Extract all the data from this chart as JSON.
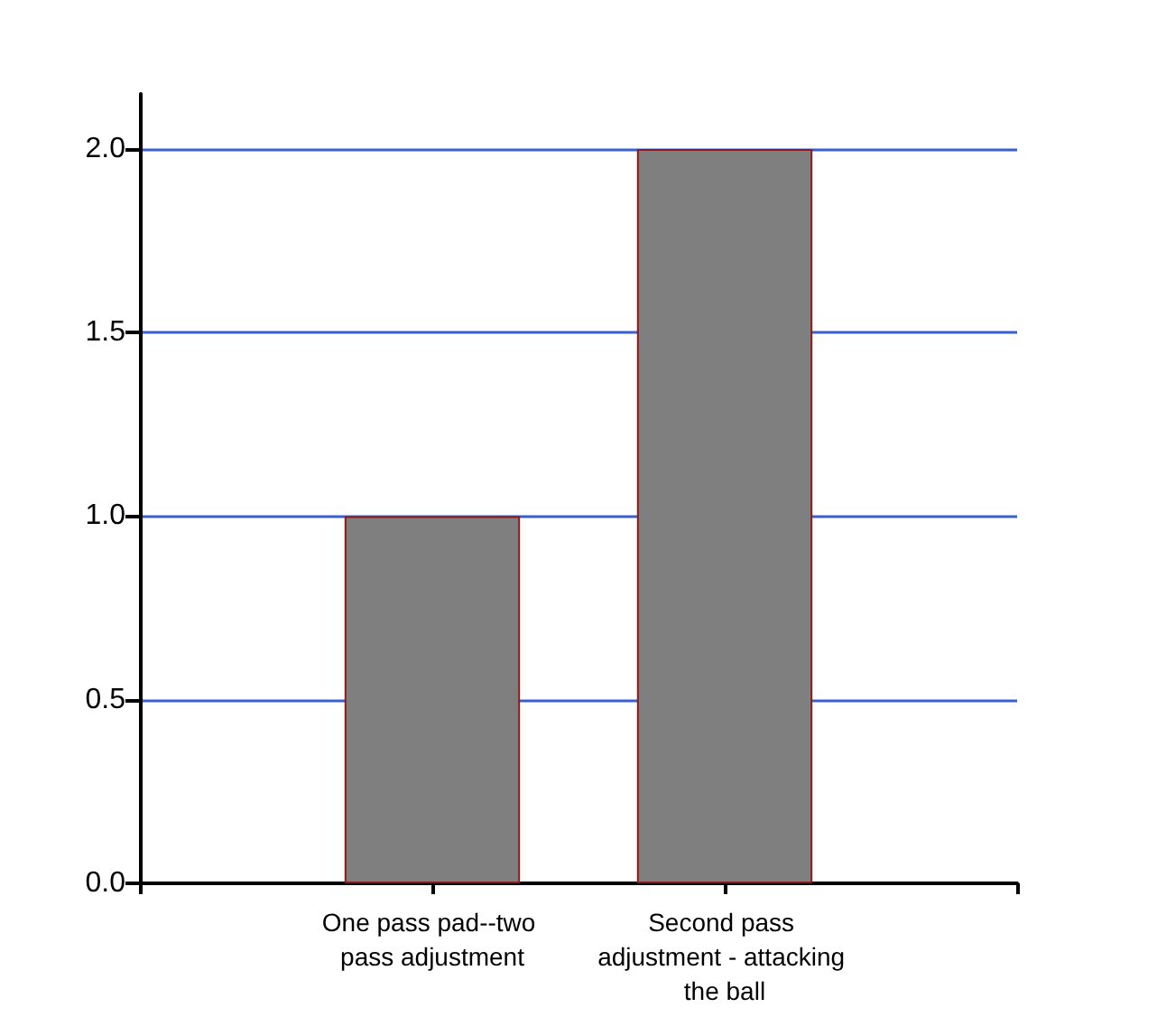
{
  "chart_data": {
    "type": "bar",
    "categories": [
      null,
      "One pass pad--two pass adjustment",
      "Second pass adjustment - attacking the ball",
      null
    ],
    "values": [
      null,
      1.0,
      2.0,
      null
    ],
    "color": "#7f7f7f",
    "ylim": [
      0,
      2.15
    ],
    "yticks": [
      {
        "value": 0,
        "label": "0.0"
      },
      {
        "value": 0.5,
        "label": "0.5"
      },
      {
        "value": 1,
        "label": "1.0"
      },
      {
        "value": 1.5,
        "label": "1.5"
      },
      {
        "value": 2,
        "label": "2.0"
      }
    ],
    "grid": "y"
  }
}
